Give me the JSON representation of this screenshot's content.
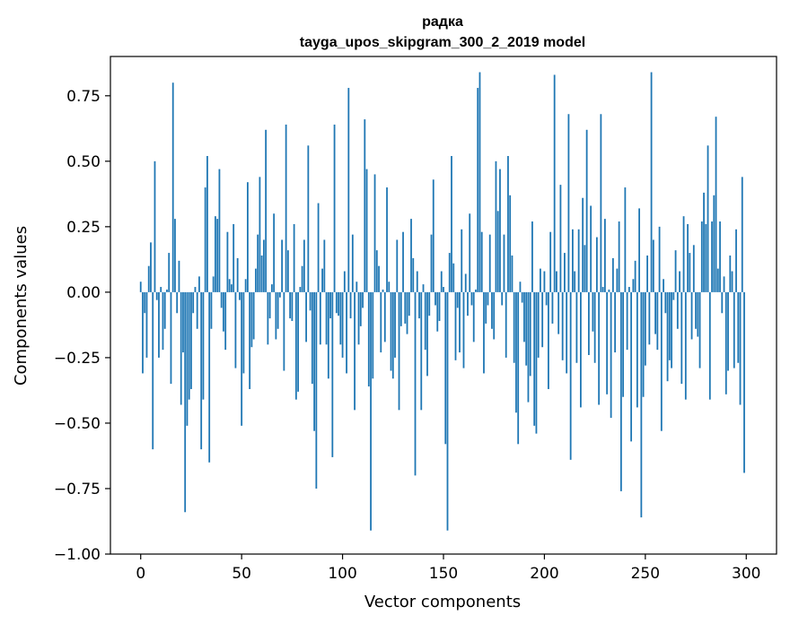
{
  "chart_data": {
    "type": "bar",
    "title": "радка",
    "subtitle": "tayga_upos_skipgram_300_2_2019 model",
    "xlabel": "Vector components",
    "ylabel": "Components values",
    "xlim": [
      -15,
      315
    ],
    "ylim": [
      -1.0,
      0.9
    ],
    "xticks": [
      0,
      50,
      100,
      150,
      200,
      250,
      300
    ],
    "xtick_labels": [
      "0",
      "50",
      "100",
      "150",
      "200",
      "250",
      "300"
    ],
    "yticks": [
      -1.0,
      -0.75,
      -0.5,
      -0.25,
      0.0,
      0.25,
      0.5,
      0.75
    ],
    "ytick_labels": [
      "−1.00",
      "−0.75",
      "−0.50",
      "−0.25",
      "0.00",
      "0.25",
      "0.50",
      "0.75"
    ],
    "bar_color": "#1f77b4",
    "grid": false,
    "legend": "none",
    "values": [
      0.04,
      -0.31,
      -0.08,
      -0.25,
      0.1,
      0.19,
      -0.6,
      0.5,
      -0.03,
      -0.25,
      0.02,
      -0.22,
      -0.14,
      0.01,
      0.15,
      -0.35,
      0.8,
      0.28,
      -0.08,
      0.12,
      -0.43,
      -0.23,
      -0.84,
      -0.51,
      -0.41,
      -0.37,
      -0.08,
      0.02,
      -0.14,
      0.06,
      -0.6,
      -0.41,
      0.4,
      0.52,
      -0.65,
      -0.14,
      0.06,
      0.29,
      0.28,
      0.47,
      -0.06,
      -0.15,
      -0.22,
      0.23,
      0.05,
      0.03,
      0.26,
      -0.29,
      0.13,
      -0.03,
      -0.51,
      -0.31,
      0.05,
      0.42,
      -0.37,
      -0.21,
      -0.18,
      0.09,
      0.22,
      0.44,
      0.14,
      0.2,
      0.62,
      -0.2,
      -0.1,
      0.03,
      0.3,
      -0.18,
      -0.14,
      -0.02,
      0.2,
      -0.3,
      0.64,
      0.16,
      -0.1,
      -0.11,
      0.26,
      -0.41,
      -0.38,
      0.02,
      0.1,
      0.2,
      -0.19,
      0.56,
      -0.07,
      -0.35,
      -0.53,
      -0.75,
      0.34,
      -0.2,
      0.09,
      0.2,
      -0.2,
      -0.33,
      -0.1,
      -0.63,
      0.64,
      -0.08,
      -0.09,
      -0.2,
      -0.25,
      0.08,
      -0.31,
      0.78,
      -0.1,
      0.22,
      -0.45,
      0.04,
      -0.2,
      -0.13,
      -0.06,
      0.66,
      0.47,
      -0.36,
      -0.91,
      -0.33,
      0.45,
      0.16,
      0.1,
      -0.23,
      0.01,
      -0.19,
      0.4,
      0.04,
      -0.3,
      -0.33,
      -0.25,
      0.2,
      -0.45,
      -0.13,
      0.23,
      -0.12,
      -0.16,
      -0.09,
      0.28,
      0.13,
      -0.7,
      0.08,
      -0.1,
      -0.45,
      0.03,
      -0.22,
      -0.32,
      -0.09,
      0.22,
      0.43,
      -0.05,
      -0.15,
      -0.11,
      0.08,
      0.02,
      -0.58,
      -0.91,
      0.15,
      0.52,
      0.11,
      -0.26,
      -0.06,
      -0.23,
      0.24,
      -0.29,
      0.07,
      -0.09,
      0.3,
      -0.05,
      -0.19,
      0.01,
      0.78,
      0.84,
      0.23,
      -0.31,
      -0.12,
      -0.05,
      0.22,
      -0.14,
      -0.18,
      0.5,
      0.31,
      0.47,
      -0.05,
      0.22,
      -0.25,
      0.52,
      0.37,
      0.14,
      -0.27,
      -0.46,
      -0.58,
      0.04,
      -0.04,
      -0.19,
      -0.28,
      -0.42,
      -0.32,
      0.27,
      -0.51,
      -0.54,
      -0.25,
      0.09,
      -0.21,
      0.08,
      -0.05,
      -0.37,
      0.23,
      -0.12,
      0.83,
      0.08,
      -0.16,
      0.41,
      -0.26,
      0.15,
      -0.31,
      0.68,
      -0.64,
      0.24,
      0.08,
      -0.27,
      0.24,
      -0.44,
      0.36,
      0.18,
      0.62,
      -0.24,
      0.33,
      -0.15,
      -0.27,
      0.21,
      -0.43,
      0.68,
      0.02,
      0.28,
      -0.39,
      0.01,
      -0.48,
      0.13,
      -0.23,
      0.09,
      0.27,
      -0.76,
      -0.4,
      0.4,
      -0.22,
      0.02,
      -0.57,
      0.05,
      0.12,
      -0.44,
      0.32,
      -0.86,
      -0.4,
      -0.28,
      0.14,
      -0.2,
      0.84,
      0.2,
      -0.16,
      -0.22,
      0.25,
      -0.53,
      0.05,
      -0.08,
      -0.34,
      -0.26,
      -0.29,
      -0.03,
      0.16,
      -0.14,
      0.08,
      -0.35,
      0.29,
      -0.41,
      0.26,
      0.15,
      -0.18,
      0.18,
      -0.14,
      -0.17,
      -0.29,
      0.27,
      0.38,
      0.26,
      0.56,
      -0.41,
      0.27,
      0.37,
      0.67,
      0.09,
      0.27,
      -0.08,
      0.06,
      -0.39,
      -0.3,
      0.14,
      0.08,
      -0.29,
      0.24,
      -0.27,
      -0.43,
      0.44,
      -0.69
    ]
  }
}
